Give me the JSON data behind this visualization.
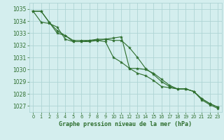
{
  "title": "Graphe pression niveau de la mer (hPa)",
  "background_color": "#d4eeee",
  "grid_color": "#aed4d4",
  "line_color": "#2d6e2d",
  "x_labels": [
    "0",
    "1",
    "2",
    "3",
    "4",
    "5",
    "6",
    "7",
    "8",
    "9",
    "10",
    "11",
    "12",
    "13",
    "14",
    "15",
    "16",
    "17",
    "18",
    "19",
    "20",
    "21",
    "22",
    "23"
  ],
  "ylim": [
    1026.5,
    1035.5
  ],
  "yticks": [
    1027,
    1028,
    1029,
    1030,
    1031,
    1032,
    1033,
    1034,
    1035
  ],
  "line1": [
    1034.8,
    1033.9,
    1033.8,
    1033.5,
    1032.5,
    1032.3,
    1032.3,
    1032.4,
    1032.5,
    1032.5,
    1032.6,
    1032.7,
    1030.1,
    1030.1,
    1030.0,
    1029.7,
    1029.2,
    1028.7,
    1028.4,
    1028.4,
    1028.2,
    1027.5,
    1027.1,
    1026.8
  ],
  "line2": [
    1034.8,
    1034.8,
    1033.9,
    1033.0,
    1032.8,
    1032.3,
    1032.3,
    1032.3,
    1032.4,
    1032.3,
    1031.0,
    1030.6,
    1030.1,
    1029.7,
    1029.5,
    1029.1,
    1028.6,
    1028.5,
    1028.4,
    1028.4,
    1028.2,
    1027.6,
    1027.2,
    1026.9
  ],
  "line3": [
    1034.8,
    1034.8,
    1033.9,
    1033.2,
    1032.8,
    1032.4,
    1032.4,
    1032.4,
    1032.4,
    1032.5,
    1032.4,
    1032.4,
    1031.8,
    1031.0,
    1030.1,
    1029.6,
    1029.0,
    1028.6,
    1028.4,
    1028.4,
    1028.2,
    1027.6,
    1027.2,
    1026.9
  ]
}
